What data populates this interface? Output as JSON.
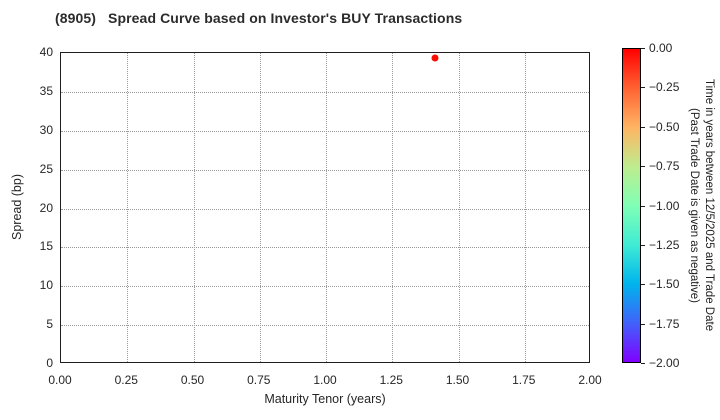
{
  "title": "(8905)   Spread Curve based on Investor's BUY Transactions",
  "chart_data": {
    "type": "scatter",
    "title": "(8905)   Spread Curve based on Investor's BUY Transactions",
    "xlabel": "Maturity Tenor (years)",
    "ylabel": "Spread (bp)",
    "xlim": [
      0.0,
      2.0
    ],
    "ylim": [
      0,
      40
    ],
    "xticks": [
      "0.00",
      "0.25",
      "0.50",
      "0.75",
      "1.00",
      "1.25",
      "1.50",
      "1.75",
      "2.00"
    ],
    "yticks": [
      "0",
      "5",
      "10",
      "15",
      "20",
      "25",
      "30",
      "35",
      "40"
    ],
    "grid": true,
    "grid_style": "dotted",
    "points": [
      {
        "x": 1.41,
        "y": 39.3,
        "color_value": 0.0,
        "color": "#fb0f00"
      }
    ],
    "colorbar": {
      "label_line1": "Time in years between 12/5/2025 and Trade Date",
      "label_line2": "(Past Trade Date is given as negative)",
      "ticks": [
        "0.00",
        "−0.25",
        "−0.50",
        "−0.75",
        "−1.00",
        "−1.25",
        "−1.50",
        "−1.75",
        "−2.00"
      ],
      "range_top_to_bottom": [
        0.0,
        -2.0
      ],
      "gradient_top_to_bottom": [
        "#ff0000",
        "#ff6232",
        "#ffb462",
        "#bfec8e",
        "#80ffb5",
        "#40ecd4",
        "#00b4ec",
        "#4062fa",
        "#8000ff"
      ]
    }
  }
}
